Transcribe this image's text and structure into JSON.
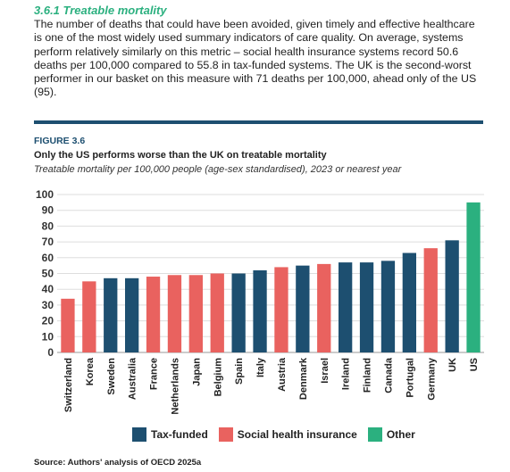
{
  "section": {
    "title": "3.6.1 Treatable mortality",
    "paragraph": "The number of deaths that could have been avoided, given timely and effective healthcare is one of the most widely used summary indicators of care quality. On average, systems perform relatively similarly on this metric – social health insurance systems record 50.6 deaths per 100,000 compared to 55.8 in tax-funded systems. The UK is the second-worst performer in our basket on this measure with 71 deaths per 100,000, ahead only of the US (95)."
  },
  "figure": {
    "label": "FIGURE 3.6",
    "title": "Only the US performs worse than the UK on treatable mortality",
    "subtitle": "Treatable mortality per 100,000 people (age-sex standardised), 2023 or nearest year",
    "source": "Source: Authors' analysis of OECD 2025a"
  },
  "chart_data": {
    "type": "bar",
    "categories": [
      "Switzerland",
      "Korea",
      "Sweden",
      "Australia",
      "France",
      "Netherlands",
      "Japan",
      "Belgium",
      "Spain",
      "Italy",
      "Austria",
      "Denmark",
      "Israel",
      "Ireland",
      "Finland",
      "Canada",
      "Portugal",
      "Germany",
      "UK",
      "US"
    ],
    "values": [
      34,
      45,
      47,
      47,
      48,
      49,
      49,
      50,
      50,
      52,
      54,
      55,
      56,
      57,
      57,
      58,
      63,
      66,
      71,
      95
    ],
    "groups": [
      "social",
      "social",
      "tax",
      "tax",
      "social",
      "social",
      "social",
      "social",
      "tax",
      "tax",
      "social",
      "tax",
      "social",
      "tax",
      "tax",
      "tax",
      "tax",
      "social",
      "tax",
      "other"
    ],
    "ylim": [
      0,
      100
    ],
    "yticks": [
      0,
      10,
      20,
      30,
      40,
      50,
      60,
      70,
      80,
      90,
      100
    ],
    "grid": true,
    "legend_position": "bottom",
    "legend": [
      {
        "key": "tax",
        "label": "Tax-funded",
        "color": "#1d4f70"
      },
      {
        "key": "social",
        "label": "Social health insurance",
        "color": "#e9625f"
      },
      {
        "key": "other",
        "label": "Other",
        "color": "#2bb07f"
      }
    ]
  }
}
